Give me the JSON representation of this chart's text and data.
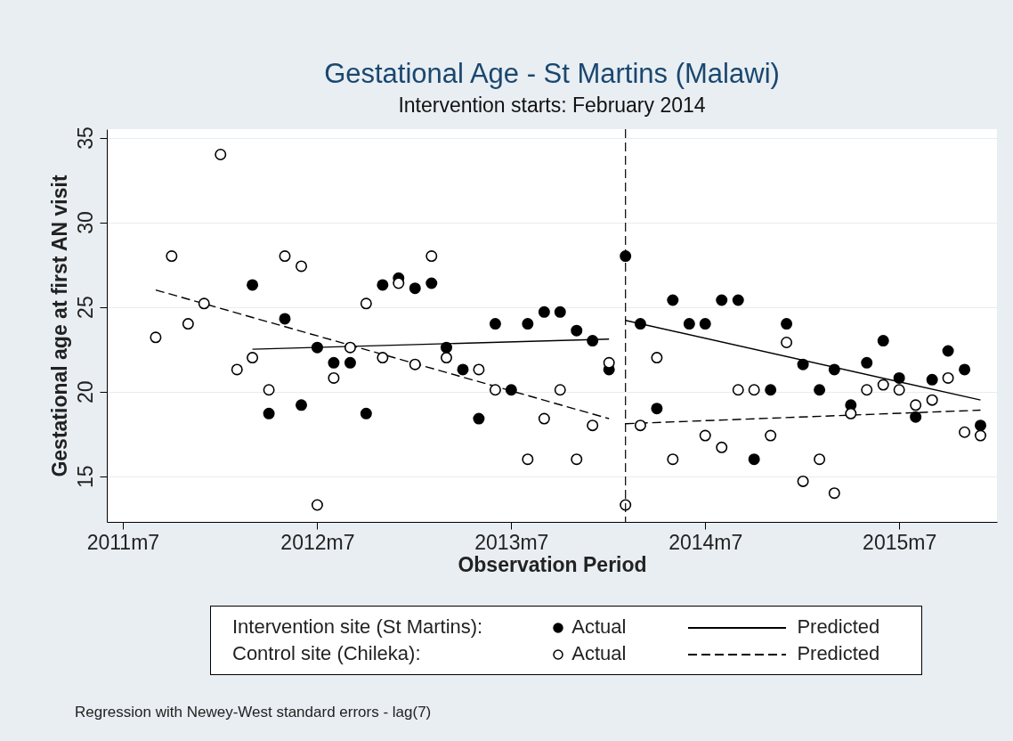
{
  "chart_data": {
    "type": "scatter",
    "title": "Gestational Age - St Martins (Malawi)",
    "subtitle": "Intervention starts: February 2014",
    "xlabel": "Observation Period",
    "ylabel": "Gestational age at first AN visit",
    "annotations": [
      "Intervention site (St Martins):",
      "Control site (Chileka):",
      "Regression with Newey-West standard errors - lag(7)"
    ],
    "xlim": [
      "2011-06",
      "2016-01"
    ],
    "xticks": [
      {
        "value": "2011-07",
        "label": "2011m7"
      },
      {
        "value": "2012-07",
        "label": "2012m7"
      },
      {
        "value": "2013-07",
        "label": "2013m7"
      },
      {
        "value": "2014-07",
        "label": "2014m7"
      },
      {
        "value": "2015-07",
        "label": "2015m7"
      }
    ],
    "ylim": [
      12.3,
      35.5
    ],
    "yticks": [
      15,
      20,
      25,
      30,
      35
    ],
    "grid": "y",
    "legend": "bottom",
    "marker": "circle",
    "ref_lines": [
      {
        "axis": "x",
        "value": "2014-02",
        "line_style": "dashed",
        "color": "#000000"
      }
    ],
    "series": [
      {
        "name": "Actual",
        "color": "#000000",
        "x": [
          "2012-03",
          "2012-04",
          "2012-05",
          "2012-06",
          "2012-07",
          "2012-08",
          "2012-09",
          "2012-10",
          "2012-11",
          "2012-12",
          "2013-01",
          "2013-02",
          "2013-03",
          "2013-04",
          "2013-05",
          "2013-06",
          "2013-07",
          "2013-08",
          "2013-09",
          "2013-10",
          "2013-11",
          "2013-12",
          "2014-01",
          "2014-02",
          "2014-03",
          "2014-04",
          "2014-05",
          "2014-06",
          "2014-07",
          "2014-08",
          "2014-09",
          "2014-10",
          "2014-11",
          "2014-12",
          "2015-01",
          "2015-02",
          "2015-03",
          "2015-04",
          "2015-05",
          "2015-06",
          "2015-07",
          "2015-08",
          "2015-09",
          "2015-10",
          "2015-11",
          "2015-12"
        ],
        "values": [
          26.3,
          18.7,
          24.3,
          19.2,
          22.6,
          21.7,
          21.7,
          18.7,
          26.3,
          26.7,
          26.1,
          26.4,
          22.6,
          21.3,
          18.4,
          24.0,
          20.1,
          24.0,
          24.7,
          24.7,
          23.6,
          23.0,
          21.3,
          28.0,
          24.0,
          19.0,
          25.4,
          24.0,
          24.0,
          25.4,
          25.4,
          16.0,
          20.1,
          24.0,
          21.6,
          20.1,
          21.3,
          19.2,
          21.7,
          23.0,
          20.8,
          18.5,
          20.7,
          22.4,
          21.3,
          18.0
        ]
      },
      {
        "name": "Actual",
        "color": "#ffffff",
        "x": [
          "2011-09",
          "2011-10",
          "2011-11",
          "2011-12",
          "2012-01",
          "2012-02",
          "2012-03",
          "2012-04",
          "2012-05",
          "2012-06",
          "2012-07",
          "2012-08",
          "2012-09",
          "2012-10",
          "2012-11",
          "2012-12",
          "2013-01",
          "2013-02",
          "2013-03",
          "2013-04",
          "2013-05",
          "2013-06",
          "2013-07",
          "2013-08",
          "2013-09",
          "2013-10",
          "2013-11",
          "2013-12",
          "2014-01",
          "2014-02",
          "2014-03",
          "2014-04",
          "2014-05",
          "2014-06",
          "2014-07",
          "2014-08",
          "2014-09",
          "2014-10",
          "2014-11",
          "2014-12",
          "2015-01",
          "2015-02",
          "2015-03",
          "2015-04",
          "2015-05",
          "2015-06",
          "2015-07",
          "2015-08",
          "2015-09",
          "2015-10",
          "2015-11",
          "2015-12"
        ],
        "values": [
          23.2,
          28.0,
          24.0,
          25.2,
          34.0,
          21.3,
          22.0,
          20.1,
          28.0,
          27.4,
          13.3,
          20.8,
          22.6,
          25.2,
          22.0,
          26.4,
          21.6,
          28.0,
          22.0,
          null,
          21.3,
          20.1,
          null,
          16.0,
          18.4,
          20.1,
          16.0,
          18.0,
          21.7,
          13.3,
          18.0,
          22.0,
          16.0,
          null,
          17.4,
          16.7,
          20.1,
          20.1,
          17.4,
          22.9,
          14.7,
          16.0,
          14.0,
          18.7,
          20.1,
          20.4,
          20.1,
          19.2,
          19.5,
          20.8,
          17.6,
          17.4
        ]
      },
      {
        "name": "Predicted",
        "type": "line",
        "marker": "none",
        "color": "#000000",
        "line_style": "solid",
        "x": [
          "2012-03",
          "2014-01"
        ],
        "values": [
          22.5,
          23.1
        ]
      },
      {
        "type": "line",
        "marker": "none",
        "color": "#000000",
        "line_style": "solid",
        "x": [
          "2014-02",
          "2015-12"
        ],
        "values": [
          24.2,
          19.5
        ]
      },
      {
        "name": "Predicted",
        "type": "line",
        "marker": "none",
        "color": "#000000",
        "line_style": "dashed",
        "x": [
          "2011-09",
          "2014-01"
        ],
        "values": [
          26.0,
          18.4
        ]
      },
      {
        "type": "line",
        "marker": "none",
        "color": "#000000",
        "line_style": "dashed",
        "x": [
          "2014-02",
          "2015-12"
        ],
        "values": [
          18.1,
          18.9
        ]
      }
    ]
  }
}
